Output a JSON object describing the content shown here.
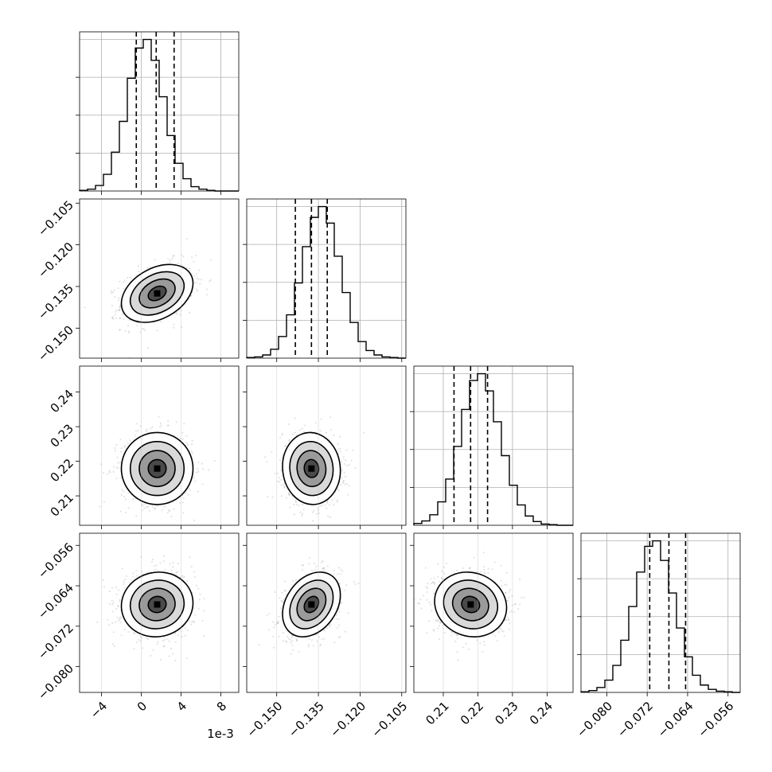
{
  "chart_data": {
    "type": "corner",
    "n_params": 4,
    "offset_label": "1e-3",
    "params": [
      {
        "center": 0.0016,
        "sigma": 0.0018,
        "range": [
          -0.0062,
          0.0098
        ],
        "ticks": [
          -0.004,
          0,
          0.004,
          0.008
        ],
        "tick_labels": [
          "−4",
          "0",
          "4",
          "8"
        ],
        "quantiles": [
          -0.0005,
          0.0015,
          0.0033
        ]
      },
      {
        "center": -0.1375,
        "sigma": 0.0052,
        "range": [
          -0.1608,
          -0.1035
        ],
        "ticks": [
          -0.15,
          -0.135,
          -0.12,
          -0.105
        ],
        "tick_labels": [
          "−0.150",
          "−0.135",
          "−0.120",
          "−0.105"
        ],
        "quantiles": [
          -0.1433,
          -0.1375,
          -0.1318
        ]
      },
      {
        "center": 0.2179,
        "sigma": 0.0052,
        "range": [
          0.2015,
          0.2475
        ],
        "ticks": [
          0.21,
          0.22,
          0.23,
          0.24
        ],
        "tick_labels": [
          "0.21",
          "0.22",
          "0.23",
          "0.24"
        ],
        "quantiles": [
          0.2131,
          0.2179,
          0.2228
        ]
      },
      {
        "center": -0.0677,
        "sigma": 0.0032,
        "range": [
          -0.0851,
          -0.0536
        ],
        "ticks": [
          -0.08,
          -0.072,
          -0.064,
          -0.056
        ],
        "tick_labels": [
          "−0.080",
          "−0.072",
          "−0.064",
          "−0.056"
        ],
        "quantiles": [
          -0.0715,
          -0.0677,
          -0.0644
        ]
      }
    ],
    "correlations": [
      [
        1.0,
        0.35,
        0.0,
        0.05
      ],
      [
        0.35,
        1.0,
        -0.05,
        0.3
      ],
      [
        0.0,
        -0.05,
        1.0,
        -0.1
      ],
      [
        0.05,
        0.3,
        -0.1,
        1.0
      ]
    ],
    "histograms": [
      [
        1,
        3,
        9,
        27,
        63,
        113,
        183,
        232,
        246,
        212,
        153,
        90,
        45,
        20,
        7,
        3,
        1,
        0,
        0,
        0
      ],
      [
        1,
        2,
        5,
        14,
        34,
        68,
        118,
        175,
        221,
        238,
        212,
        160,
        103,
        56,
        26,
        12,
        5,
        2,
        1,
        0
      ],
      [
        3,
        7,
        17,
        38,
        75,
        128,
        188,
        235,
        246,
        218,
        168,
        113,
        65,
        33,
        15,
        6,
        2,
        1,
        0,
        0
      ],
      [
        1,
        3,
        8,
        20,
        44,
        85,
        140,
        196,
        238,
        247,
        215,
        162,
        105,
        58,
        28,
        12,
        5,
        2,
        1,
        0
      ]
    ]
  }
}
